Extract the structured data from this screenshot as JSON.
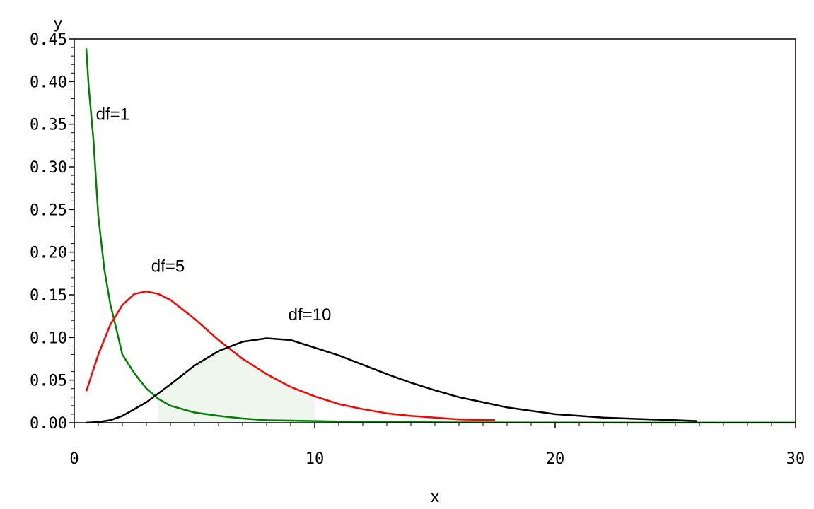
{
  "chart_data": {
    "type": "line",
    "title": "",
    "xlabel": "x",
    "ylabel": "y",
    "xlim": [
      0,
      30
    ],
    "ylim": [
      0,
      0.45
    ],
    "xticks": [
      0,
      10,
      20,
      30
    ],
    "xtick_labels": [
      "0",
      "10",
      "20",
      "30"
    ],
    "yticks": [
      0,
      0.05,
      0.1,
      0.15,
      0.2,
      0.25,
      0.3,
      0.35,
      0.4,
      0.45
    ],
    "ytick_labels": [
      "0.00",
      "0.05",
      "0.10",
      "0.15",
      "0.20",
      "0.25",
      "0.30",
      "0.35",
      "0.40",
      "0.45"
    ],
    "grid": false,
    "series": [
      {
        "name": "df=1",
        "color": "#008000",
        "x": [
          0.5,
          0.6,
          0.8,
          1,
          1.25,
          1.5,
          1.75,
          2,
          2.5,
          3,
          3.5,
          4,
          5,
          6,
          7,
          8,
          10,
          12,
          15,
          20,
          25,
          30
        ],
        "y": [
          0.439,
          0.394,
          0.331,
          0.242,
          0.18,
          0.139,
          0.11,
          0.08,
          0.058,
          0.04,
          0.028,
          0.02,
          0.012,
          0.008,
          0.005,
          0.003,
          0.002,
          0.001,
          0.0005,
          0.0002,
          0.0001,
          0.0001
        ]
      },
      {
        "name": "df=5",
        "color": "#ff0000",
        "x": [
          0.5,
          1,
          1.5,
          2,
          2.5,
          3,
          3.5,
          4,
          5,
          6,
          7,
          8,
          9,
          10,
          11,
          12,
          13,
          14,
          15,
          16,
          17.5
        ],
        "y": [
          0.037,
          0.08,
          0.115,
          0.138,
          0.151,
          0.154,
          0.151,
          0.144,
          0.122,
          0.097,
          0.075,
          0.057,
          0.042,
          0.031,
          0.022,
          0.016,
          0.011,
          0.008,
          0.006,
          0.004,
          0.003
        ]
      },
      {
        "name": "df=10",
        "color": "#000000",
        "x": [
          0.5,
          1,
          1.5,
          2,
          3,
          4,
          5,
          6,
          7,
          8,
          9,
          10,
          11,
          12,
          13,
          14,
          15,
          16,
          17,
          18,
          19,
          20,
          21,
          22,
          23,
          24,
          25,
          25.9
        ],
        "y": [
          0.0001,
          0.0008,
          0.003,
          0.008,
          0.024,
          0.045,
          0.067,
          0.084,
          0.095,
          0.099,
          0.097,
          0.088,
          0.079,
          0.068,
          0.057,
          0.047,
          0.038,
          0.03,
          0.024,
          0.018,
          0.014,
          0.01,
          0.008,
          0.006,
          0.005,
          0.004,
          0.003,
          0.002
        ]
      }
    ],
    "shaded_region": {
      "x_from": 3.5,
      "x_to": 10,
      "fill": "#eef6ee"
    },
    "annotations": [
      {
        "text": "df=1",
        "x": 0.9,
        "y": 0.355
      },
      {
        "text": "df=5",
        "x": 3.2,
        "y": 0.177
      },
      {
        "text": "df=10",
        "x": 8.9,
        "y": 0.12
      }
    ],
    "legend": "none"
  }
}
